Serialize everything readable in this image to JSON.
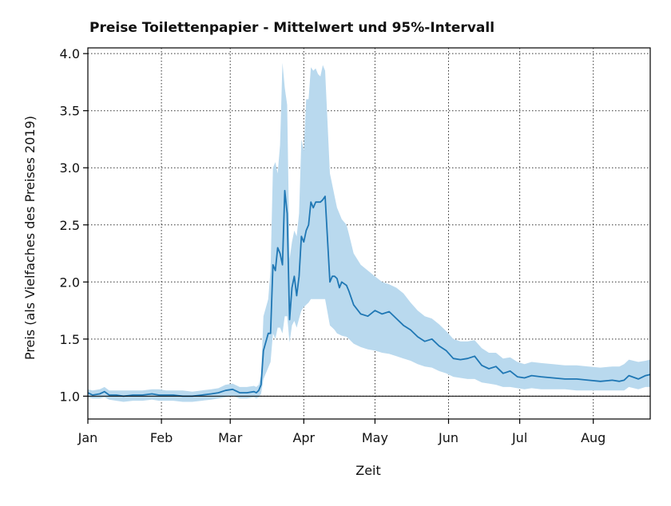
{
  "chart_data": {
    "type": "line",
    "title": "Preise Toilettenpapier - Mittelwert und 95%-Intervall",
    "xlabel": "Zeit",
    "ylabel": "Preis (als Vielfaches des Preises 2019)",
    "x_ticks": [
      "Jan",
      "Feb",
      "Mar",
      "Apr",
      "May",
      "Jun",
      "Jul",
      "Aug"
    ],
    "y_ticks": [
      "1.0",
      "1.5",
      "2.0",
      "2.5",
      "3.0",
      "3.5",
      "4.0"
    ],
    "xlim": [
      "2020-01-01",
      "2020-08-25"
    ],
    "ylim": [
      0.8,
      4.05
    ],
    "grid": true,
    "reference_line": 1.0,
    "series": [
      {
        "color": "#1f77b4",
        "band_color": "#b9d9ee",
        "x": [
          "2020-01-01",
          "2020-01-03",
          "2020-01-06",
          "2020-01-08",
          "2020-01-10",
          "2020-01-13",
          "2020-01-16",
          "2020-01-20",
          "2020-01-24",
          "2020-01-28",
          "2020-01-31",
          "2020-02-03",
          "2020-02-06",
          "2020-02-10",
          "2020-02-14",
          "2020-02-18",
          "2020-02-22",
          "2020-02-25",
          "2020-02-28",
          "2020-03-02",
          "2020-03-05",
          "2020-03-08",
          "2020-03-11",
          "2020-03-12",
          "2020-03-13",
          "2020-03-14",
          "2020-03-15",
          "2020-03-17",
          "2020-03-18",
          "2020-03-19",
          "2020-03-20",
          "2020-03-21",
          "2020-03-22",
          "2020-03-23",
          "2020-03-24",
          "2020-03-25",
          "2020-03-26",
          "2020-03-27",
          "2020-03-28",
          "2020-03-29",
          "2020-03-30",
          "2020-03-31",
          "2020-04-01",
          "2020-04-02",
          "2020-04-03",
          "2020-04-04",
          "2020-04-05",
          "2020-04-06",
          "2020-04-07",
          "2020-04-08",
          "2020-04-09",
          "2020-04-10",
          "2020-04-12",
          "2020-04-13",
          "2020-04-14",
          "2020-04-15",
          "2020-04-16",
          "2020-04-17",
          "2020-04-19",
          "2020-04-20",
          "2020-04-22",
          "2020-04-25",
          "2020-04-28",
          "2020-05-01",
          "2020-05-04",
          "2020-05-07",
          "2020-05-10",
          "2020-05-13",
          "2020-05-16",
          "2020-05-19",
          "2020-05-22",
          "2020-05-25",
          "2020-05-28",
          "2020-05-31",
          "2020-06-03",
          "2020-06-06",
          "2020-06-09",
          "2020-06-12",
          "2020-06-15",
          "2020-06-18",
          "2020-06-21",
          "2020-06-24",
          "2020-06-27",
          "2020-06-30",
          "2020-07-03",
          "2020-07-06",
          "2020-07-10",
          "2020-07-15",
          "2020-07-20",
          "2020-07-25",
          "2020-07-30",
          "2020-08-04",
          "2020-08-09",
          "2020-08-12",
          "2020-08-14",
          "2020-08-16",
          "2020-08-20",
          "2020-08-23",
          "2020-08-25"
        ],
        "mean": [
          1.03,
          1.01,
          1.02,
          1.04,
          1.01,
          1.01,
          1.0,
          1.01,
          1.01,
          1.02,
          1.01,
          1.01,
          1.01,
          1.0,
          1.0,
          1.01,
          1.02,
          1.03,
          1.05,
          1.06,
          1.03,
          1.03,
          1.04,
          1.03,
          1.05,
          1.1,
          1.4,
          1.55,
          1.55,
          2.15,
          2.1,
          2.3,
          2.25,
          2.15,
          2.8,
          2.6,
          1.67,
          1.95,
          2.05,
          1.88,
          2.05,
          2.4,
          2.35,
          2.45,
          2.5,
          2.7,
          2.65,
          2.7,
          2.7,
          2.7,
          2.72,
          2.75,
          2.0,
          2.05,
          2.05,
          2.03,
          1.95,
          2.0,
          1.97,
          1.92,
          1.8,
          1.72,
          1.7,
          1.75,
          1.72,
          1.74,
          1.68,
          1.62,
          1.58,
          1.52,
          1.48,
          1.5,
          1.44,
          1.4,
          1.33,
          1.32,
          1.33,
          1.35,
          1.27,
          1.24,
          1.26,
          1.2,
          1.22,
          1.17,
          1.16,
          1.18,
          1.17,
          1.16,
          1.15,
          1.15,
          1.14,
          1.13,
          1.14,
          1.13,
          1.14,
          1.18,
          1.15,
          1.18,
          1.19
        ],
        "lower": [
          0.99,
          0.98,
          0.98,
          0.99,
          0.97,
          0.96,
          0.95,
          0.96,
          0.96,
          0.97,
          0.96,
          0.96,
          0.96,
          0.95,
          0.95,
          0.96,
          0.97,
          0.98,
          0.99,
          1.0,
          0.98,
          0.98,
          0.99,
          0.98,
          0.99,
          1.02,
          1.15,
          1.25,
          1.3,
          1.55,
          1.5,
          1.6,
          1.6,
          1.55,
          1.7,
          1.7,
          1.47,
          1.62,
          1.66,
          1.6,
          1.68,
          1.75,
          1.78,
          1.8,
          1.82,
          1.85,
          1.85,
          1.85,
          1.85,
          1.85,
          1.85,
          1.85,
          1.62,
          1.6,
          1.58,
          1.55,
          1.54,
          1.53,
          1.52,
          1.5,
          1.46,
          1.43,
          1.41,
          1.4,
          1.38,
          1.37,
          1.35,
          1.33,
          1.31,
          1.28,
          1.26,
          1.25,
          1.22,
          1.2,
          1.17,
          1.16,
          1.15,
          1.15,
          1.12,
          1.11,
          1.1,
          1.08,
          1.08,
          1.07,
          1.06,
          1.07,
          1.06,
          1.06,
          1.06,
          1.05,
          1.05,
          1.05,
          1.05,
          1.05,
          1.05,
          1.08,
          1.06,
          1.08,
          1.08
        ],
        "upper": [
          1.06,
          1.05,
          1.06,
          1.08,
          1.05,
          1.05,
          1.05,
          1.05,
          1.05,
          1.06,
          1.06,
          1.05,
          1.05,
          1.05,
          1.04,
          1.05,
          1.06,
          1.07,
          1.1,
          1.11,
          1.08,
          1.08,
          1.09,
          1.08,
          1.1,
          1.18,
          1.7,
          1.85,
          2.1,
          3.0,
          3.05,
          2.95,
          3.2,
          3.92,
          3.7,
          3.55,
          2.2,
          2.35,
          2.45,
          2.4,
          2.6,
          3.25,
          3.15,
          3.6,
          3.6,
          3.88,
          3.85,
          3.87,
          3.82,
          3.8,
          3.9,
          3.85,
          2.95,
          2.85,
          2.75,
          2.65,
          2.6,
          2.55,
          2.5,
          2.42,
          2.25,
          2.15,
          2.1,
          2.05,
          2.0,
          1.98,
          1.95,
          1.9,
          1.82,
          1.75,
          1.7,
          1.68,
          1.63,
          1.57,
          1.5,
          1.48,
          1.48,
          1.49,
          1.42,
          1.38,
          1.38,
          1.33,
          1.34,
          1.3,
          1.28,
          1.3,
          1.29,
          1.28,
          1.27,
          1.27,
          1.26,
          1.25,
          1.26,
          1.26,
          1.28,
          1.32,
          1.3,
          1.31,
          1.32
        ]
      }
    ]
  }
}
